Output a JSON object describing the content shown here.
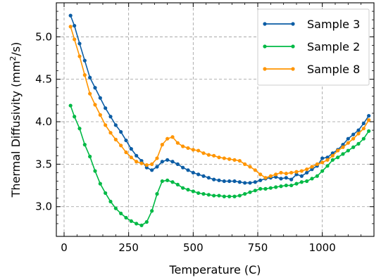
{
  "chart_data": {
    "type": "line",
    "xlabel": "Temperature (C)",
    "ylabel_main": "Thermal Diffusivity (mm",
    "ylabel_sup": "2",
    "ylabel_tail": "/s)",
    "xlim": [
      -30,
      1200
    ],
    "ylim": [
      2.65,
      5.4
    ],
    "xticks": [
      0,
      250,
      500,
      750,
      1000
    ],
    "yticks": [
      3.0,
      3.5,
      4.0,
      4.5,
      5.0
    ],
    "ytick_labels": [
      "3.0",
      "3.5",
      "4.0",
      "4.5",
      "5.0"
    ],
    "grid": true,
    "legend_position": "top-right",
    "series": [
      {
        "name": "Sample 3",
        "color": "#0C5DA5",
        "x": [
          25,
          40,
          60,
          80,
          100,
          120,
          140,
          160,
          180,
          200,
          220,
          240,
          260,
          280,
          300,
          320,
          340,
          360,
          380,
          400,
          420,
          440,
          460,
          480,
          500,
          520,
          540,
          560,
          580,
          600,
          620,
          640,
          660,
          680,
          700,
          720,
          740,
          760,
          780,
          800,
          820,
          840,
          860,
          880,
          900,
          920,
          940,
          960,
          980,
          1000,
          1020,
          1040,
          1060,
          1080,
          1100,
          1120,
          1140,
          1160,
          1180
        ],
        "y": [
          5.25,
          5.13,
          4.92,
          4.72,
          4.52,
          4.4,
          4.28,
          4.16,
          4.06,
          3.96,
          3.88,
          3.78,
          3.68,
          3.6,
          3.54,
          3.46,
          3.43,
          3.47,
          3.53,
          3.55,
          3.53,
          3.5,
          3.46,
          3.43,
          3.4,
          3.38,
          3.36,
          3.34,
          3.32,
          3.31,
          3.3,
          3.3,
          3.3,
          3.29,
          3.28,
          3.28,
          3.29,
          3.31,
          3.33,
          3.34,
          3.35,
          3.33,
          3.34,
          3.32,
          3.38,
          3.36,
          3.4,
          3.44,
          3.48,
          3.57,
          3.58,
          3.63,
          3.67,
          3.73,
          3.8,
          3.85,
          3.9,
          3.98,
          4.07
        ]
      },
      {
        "name": "Sample 2",
        "color": "#00B945",
        "x": [
          25,
          40,
          60,
          80,
          100,
          120,
          140,
          160,
          180,
          200,
          220,
          240,
          260,
          280,
          300,
          320,
          340,
          360,
          380,
          400,
          420,
          440,
          460,
          480,
          500,
          520,
          540,
          560,
          580,
          600,
          620,
          640,
          660,
          680,
          700,
          720,
          740,
          760,
          780,
          800,
          820,
          840,
          860,
          880,
          900,
          920,
          940,
          960,
          980,
          1000,
          1020,
          1040,
          1060,
          1080,
          1100,
          1120,
          1140,
          1160,
          1180
        ],
        "y": [
          4.19,
          4.06,
          3.92,
          3.73,
          3.59,
          3.42,
          3.27,
          3.16,
          3.06,
          2.98,
          2.92,
          2.87,
          2.83,
          2.8,
          2.78,
          2.82,
          2.95,
          3.15,
          3.3,
          3.31,
          3.29,
          3.26,
          3.22,
          3.2,
          3.18,
          3.16,
          3.15,
          3.14,
          3.13,
          3.13,
          3.12,
          3.12,
          3.12,
          3.13,
          3.15,
          3.17,
          3.19,
          3.21,
          3.21,
          3.22,
          3.23,
          3.24,
          3.25,
          3.25,
          3.27,
          3.29,
          3.3,
          3.33,
          3.36,
          3.42,
          3.48,
          3.55,
          3.58,
          3.62,
          3.66,
          3.7,
          3.74,
          3.8,
          3.89
        ]
      },
      {
        "name": "Sample 8",
        "color": "#FF9500",
        "x": [
          25,
          40,
          60,
          80,
          100,
          120,
          140,
          160,
          180,
          200,
          220,
          240,
          260,
          280,
          300,
          320,
          340,
          360,
          380,
          400,
          420,
          440,
          460,
          480,
          500,
          520,
          540,
          560,
          580,
          600,
          620,
          640,
          660,
          680,
          700,
          720,
          740,
          760,
          780,
          800,
          820,
          840,
          860,
          880,
          900,
          920,
          940,
          960,
          980,
          1000,
          1020,
          1040,
          1060,
          1080,
          1100,
          1120,
          1140,
          1160,
          1180
        ],
        "y": [
          5.12,
          4.97,
          4.77,
          4.55,
          4.33,
          4.2,
          4.08,
          3.96,
          3.87,
          3.79,
          3.72,
          3.64,
          3.58,
          3.53,
          3.51,
          3.49,
          3.5,
          3.57,
          3.73,
          3.8,
          3.82,
          3.75,
          3.71,
          3.69,
          3.67,
          3.66,
          3.63,
          3.61,
          3.6,
          3.58,
          3.57,
          3.56,
          3.55,
          3.54,
          3.5,
          3.47,
          3.43,
          3.38,
          3.34,
          3.36,
          3.38,
          3.4,
          3.39,
          3.4,
          3.41,
          3.42,
          3.44,
          3.47,
          3.5,
          3.52,
          3.55,
          3.6,
          3.66,
          3.7,
          3.75,
          3.8,
          3.86,
          3.92,
          4.02
        ]
      }
    ]
  }
}
